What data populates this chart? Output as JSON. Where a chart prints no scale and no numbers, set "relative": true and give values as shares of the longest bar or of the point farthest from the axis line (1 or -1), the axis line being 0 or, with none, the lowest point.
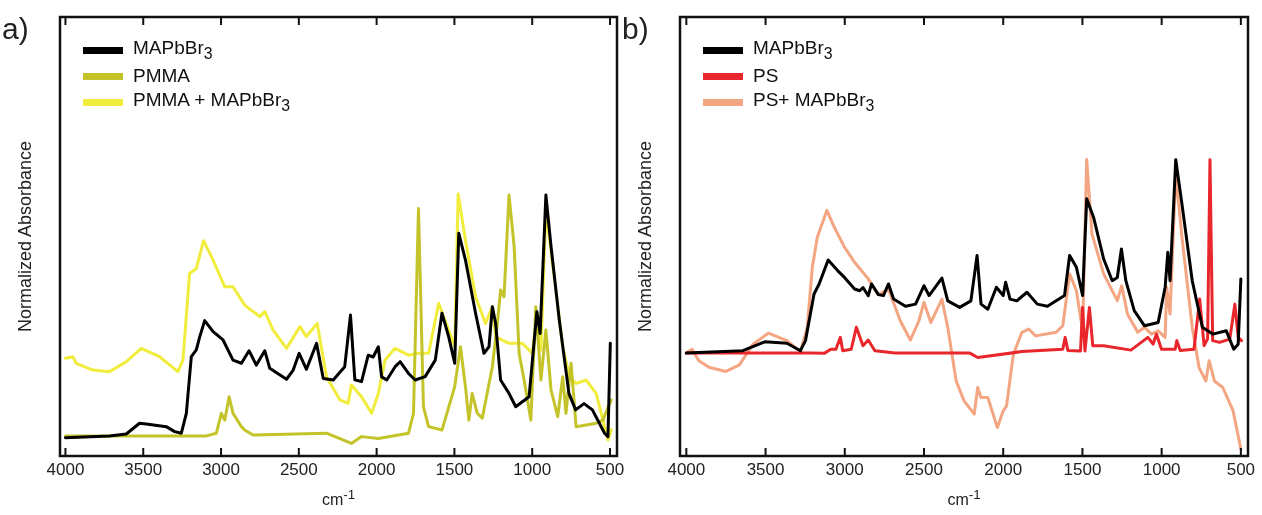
{
  "chart_data": [
    {
      "type": "line",
      "title": "a)",
      "xlabel": "cm$^{-1}$",
      "ylabel": "Normalized Absorbance",
      "relative": true,
      "xlim": [
        4035,
        455
      ],
      "xticks": [
        4000,
        3500,
        3000,
        2500,
        2000,
        1500,
        1000,
        500
      ],
      "legend": "top left",
      "marker": "none",
      "grid": false,
      "series": [
        {
          "name": "MAPbBr$_{3}$",
          "color": "#000000",
          "x": [
            4000,
            3717,
            3609,
            3524,
            3481,
            3352,
            3298,
            3255,
            3223,
            3191,
            3159,
            3137,
            3105,
            3051,
            2987,
            2923,
            2869,
            2820,
            2773,
            2719,
            2687,
            2579,
            2536,
            2498,
            2451,
            2386,
            2343,
            2279,
            2205,
            2168,
            2140,
            2097,
            2054,
            2022,
            1989,
            1968,
            1935,
            1881,
            1849,
            1795,
            1752,
            1688,
            1623,
            1580,
            1537,
            1498,
            1472,
            1429,
            1364,
            1310,
            1278,
            1256,
            1235,
            1203,
            1149,
            1106,
            1020,
            970,
            949,
            912,
            879,
            826,
            764,
            721,
            667,
            613,
            535,
            513,
            498
          ],
          "values": [
            0.07,
            0.076,
            0.084,
            0.125,
            0.122,
            0.112,
            0.093,
            0.087,
            0.163,
            0.379,
            0.405,
            0.455,
            0.517,
            0.475,
            0.443,
            0.366,
            0.354,
            0.402,
            0.347,
            0.402,
            0.335,
            0.293,
            0.328,
            0.392,
            0.331,
            0.43,
            0.296,
            0.29,
            0.341,
            0.538,
            0.291,
            0.284,
            0.385,
            0.378,
            0.417,
            0.302,
            0.29,
            0.341,
            0.36,
            0.315,
            0.29,
            0.303,
            0.366,
            0.545,
            0.456,
            0.354,
            0.85,
            0.748,
            0.545,
            0.392,
            0.417,
            0.57,
            0.506,
            0.29,
            0.239,
            0.188,
            0.226,
            0.551,
            0.468,
            0.996,
            0.8,
            0.52,
            0.239,
            0.176,
            0.2,
            0.176,
            0.087,
            0.074,
            0.43
          ]
        },
        {
          "name": "PMMA",
          "color": "#c4c42a",
          "x": [
            4000,
            3500,
            3100,
            3030,
            2998,
            2976,
            2948,
            2923,
            2869,
            2848,
            2794,
            2322,
            2162,
            2097,
            1989,
            1795,
            1763,
            1731,
            1699,
            1666,
            1580,
            1498,
            1461,
            1429,
            1407,
            1386,
            1353,
            1321,
            1256,
            1224,
            1203,
            1181,
            1149,
            1116,
            1084,
            1052,
            1009,
            977,
            944,
            912,
            879,
            836,
            804,
            783,
            750,
            718,
            589,
            546,
            492
          ],
          "values": [
            0.076,
            0.076,
            0.076,
            0.087,
            0.163,
            0.137,
            0.226,
            0.163,
            0.112,
            0.099,
            0.08,
            0.087,
            0.048,
            0.074,
            0.067,
            0.087,
            0.163,
            0.945,
            0.188,
            0.112,
            0.099,
            0.265,
            0.417,
            0.265,
            0.137,
            0.239,
            0.163,
            0.144,
            0.341,
            0.506,
            0.634,
            0.608,
            0.996,
            0.799,
            0.392,
            0.29,
            0.137,
            0.57,
            0.29,
            0.481,
            0.252,
            0.15,
            0.303,
            0.163,
            0.354,
            0.112,
            0.125,
            0.137,
            0.214
          ]
        },
        {
          "name": "PMMA + MAPbBr$_{3}$",
          "color": "#f2ec3c",
          "x": [
            4000,
            3953,
            3931,
            3824,
            3717,
            3609,
            3513,
            3395,
            3277,
            3245,
            3202,
            3159,
            3112,
            3051,
            2976,
            2923,
            2848,
            2751,
            2719,
            2665,
            2579,
            2493,
            2451,
            2382,
            2322,
            2236,
            2183,
            2162,
            2097,
            2032,
            1989,
            1946,
            1881,
            1795,
            1731,
            1666,
            1601,
            1537,
            1498,
            1476,
            1429,
            1364,
            1300,
            1256,
            1235,
            1149,
            1063,
            1000,
            966,
            944,
            912,
            869,
            804,
            761,
            718,
            653,
            589,
            513,
            492
          ],
          "values": [
            0.373,
            0.379,
            0.354,
            0.328,
            0.322,
            0.36,
            0.411,
            0.379,
            0.322,
            0.366,
            0.697,
            0.716,
            0.822,
            0.748,
            0.646,
            0.646,
            0.576,
            0.532,
            0.551,
            0.481,
            0.411,
            0.494,
            0.456,
            0.506,
            0.303,
            0.214,
            0.201,
            0.271,
            0.226,
            0.163,
            0.239,
            0.366,
            0.411,
            0.385,
            0.392,
            0.392,
            0.583,
            0.481,
            0.417,
            1,
            0.824,
            0.608,
            0.506,
            0.57,
            0.455,
            0.43,
            0.43,
            0.392,
            0.545,
            0.405,
            0.939,
            0.735,
            0.417,
            0.303,
            0.277,
            0.29,
            0.239,
            0.061,
            0.1
          ]
        }
      ]
    },
    {
      "type": "line",
      "title": "b)",
      "xlabel": "cm$^{-1}$",
      "ylabel": "Normalized Absorbance",
      "relative": true,
      "xlim": [
        4040,
        455
      ],
      "xticks": [
        4000,
        3500,
        3000,
        2500,
        2000,
        1500,
        1000,
        500
      ],
      "legend": "top left",
      "marker": "none",
      "grid": false,
      "series": [
        {
          "name": "MAPbBr$_{3}$",
          "color": "#000000",
          "x": [
            4000,
            3643,
            3504,
            3365,
            3280,
            3248,
            3194,
            3162,
            3105,
            3045,
            3002,
            2938,
            2906,
            2885,
            2852,
            2831,
            2788,
            2756,
            2724,
            2692,
            2617,
            2553,
            2500,
            2468,
            2387,
            2350,
            2275,
            2204,
            2165,
            2140,
            2097,
            2043,
            2000,
            1985,
            1957,
            1914,
            1850,
            1785,
            1721,
            1613,
            1581,
            1538,
            1499,
            1473,
            1430,
            1366,
            1312,
            1280,
            1254,
            1226,
            1173,
            1108,
            1022,
            978,
            961,
            947,
            911,
            872,
            807,
            743,
            678,
            592,
            545,
            517,
            500
          ],
          "values": [
            0.347,
            0.355,
            0.385,
            0.38,
            0.355,
            0.389,
            0.546,
            0.58,
            0.661,
            0.625,
            0.602,
            0.563,
            0.557,
            0.568,
            0.54,
            0.58,
            0.544,
            0.541,
            0.58,
            0.529,
            0.505,
            0.512,
            0.574,
            0.541,
            0.6,
            0.523,
            0.501,
            0.523,
            0.676,
            0.512,
            0.495,
            0.569,
            0.541,
            0.586,
            0.529,
            0.523,
            0.552,
            0.512,
            0.505,
            0.541,
            0.676,
            0.636,
            0.541,
            0.867,
            0.805,
            0.664,
            0.591,
            0.602,
            0.698,
            0.591,
            0.49,
            0.439,
            0.45,
            0.569,
            0.687,
            0.591,
            0.999,
            0.85,
            0.591,
            0.434,
            0.411,
            0.422,
            0.36,
            0.377,
            0.597
          ]
        },
        {
          "name": "PS",
          "color": "#e8262b",
          "x": [
            4000,
            3216,
            3130,
            3088,
            3056,
            3028,
            3013,
            2959,
            2927,
            2885,
            2852,
            2810,
            2682,
            2211,
            2161,
            1882,
            1624,
            1609,
            1592,
            1512,
            1499,
            1484,
            1456,
            1435,
            1366,
            1194,
            1087,
            1054,
            1033,
            1001,
            915,
            904,
            883,
            796,
            760,
            732,
            710,
            695,
            678,
            635,
            570,
            538,
            517,
            496
          ],
          "values": [
            0.347,
            0.347,
            0.346,
            0.36,
            0.36,
            0.4,
            0.355,
            0.36,
            0.434,
            0.372,
            0.391,
            0.355,
            0.347,
            0.347,
            0.332,
            0.352,
            0.36,
            0.4,
            0.356,
            0.354,
            0.501,
            0.354,
            0.501,
            0.372,
            0.372,
            0.357,
            0.4,
            0.377,
            0.411,
            0.36,
            0.36,
            0.389,
            0.356,
            0.36,
            0.529,
            0.372,
            0.395,
            0.999,
            0.389,
            0.383,
            0.394,
            0.512,
            0.4,
            0.389
          ]
        },
        {
          "name": "PS+ MAPbBr$_{3}$",
          "color": "#f4a582",
          "x": [
            4000,
            3964,
            3921,
            3857,
            3750,
            3665,
            3579,
            3483,
            3365,
            3280,
            3237,
            3205,
            3173,
            3113,
            3066,
            3002,
            2938,
            2852,
            2788,
            2724,
            2650,
            2586,
            2532,
            2500,
            2457,
            2387,
            2350,
            2297,
            2247,
            2183,
            2161,
            2140,
            2097,
            2037,
            2000,
            1979,
            1936,
            1882,
            1839,
            1796,
            1667,
            1624,
            1581,
            1538,
            1499,
            1473,
            1440,
            1366,
            1280,
            1252,
            1216,
            1151,
            1108,
            1065,
            1022,
            978,
            968,
            947,
            911,
            872,
            807,
            764,
            721,
            700,
            667,
            614,
            549,
            500
          ],
          "values": [
            0.347,
            0.36,
            0.321,
            0.299,
            0.285,
            0.307,
            0.377,
            0.414,
            0.389,
            0.352,
            0.433,
            0.636,
            0.738,
            0.828,
            0.771,
            0.704,
            0.653,
            0.597,
            0.544,
            0.563,
            0.456,
            0.391,
            0.456,
            0.518,
            0.45,
            0.529,
            0.434,
            0.253,
            0.186,
            0.141,
            0.231,
            0.197,
            0.197,
            0.096,
            0.152,
            0.169,
            0.343,
            0.417,
            0.428,
            0.405,
            0.417,
            0.439,
            0.614,
            0.557,
            0.423,
            1,
            0.749,
            0.614,
            0.524,
            0.574,
            0.479,
            0.417,
            0.434,
            0.411,
            0.422,
            0.4,
            0.569,
            0.479,
            0.952,
            0.739,
            0.434,
            0.298,
            0.253,
            0.321,
            0.253,
            0.231,
            0.152,
            0.023
          ]
        }
      ]
    }
  ]
}
